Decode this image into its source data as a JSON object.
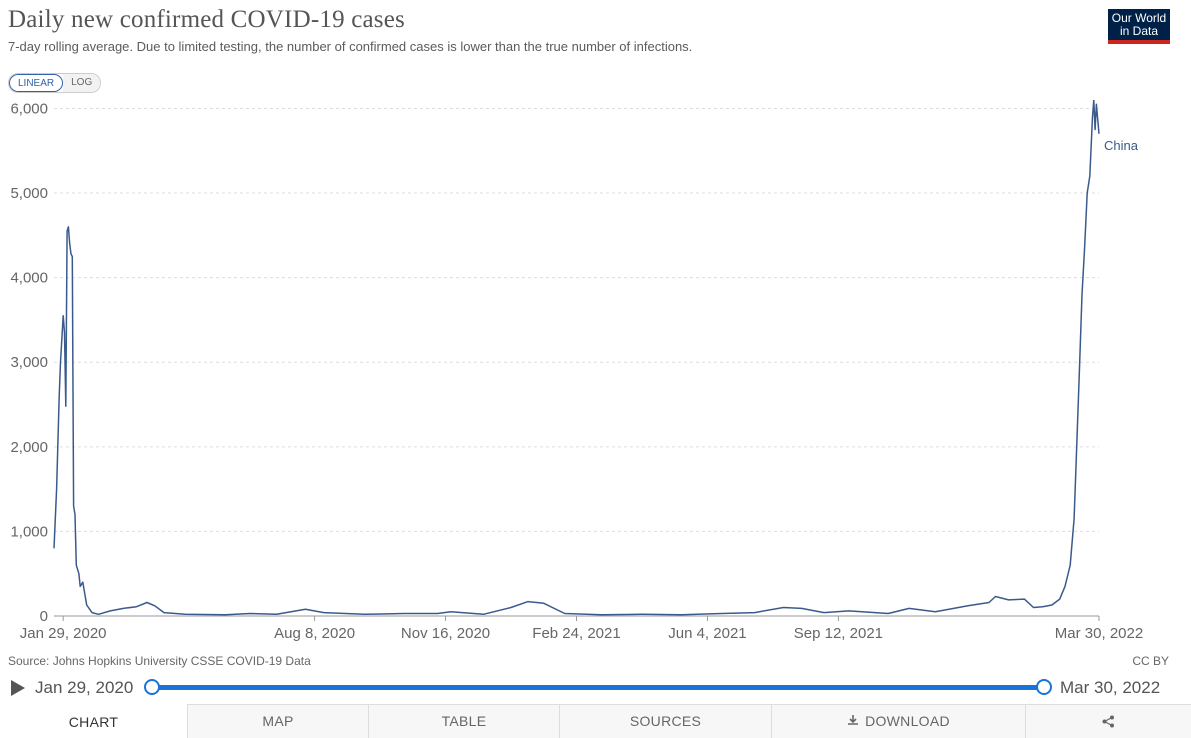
{
  "header": {
    "title": "Daily new confirmed COVID-19 cases",
    "subtitle": "7-day rolling average. Due to limited testing, the number of confirmed cases is lower than the true number of infections.",
    "logo_line1": "Our World",
    "logo_line2": "in Data"
  },
  "scale_toggle": {
    "linear": "LINEAR",
    "log": "LOG",
    "active": "LINEAR"
  },
  "chart_data": {
    "type": "line",
    "title": "Daily new confirmed COVID-19 cases",
    "ylim": [
      0,
      6100
    ],
    "yticks": [
      0,
      1000,
      2000,
      3000,
      4000,
      5000,
      6000
    ],
    "ytick_labels": [
      "0",
      "1,000",
      "2,000",
      "3,000",
      "4,000",
      "5,000",
      "6,000"
    ],
    "xlim": [
      "2020-01-22",
      "2022-03-30"
    ],
    "xticks": [
      "2020-01-29",
      "2020-08-08",
      "2020-11-16",
      "2021-02-24",
      "2021-06-04",
      "2021-09-12",
      "2022-03-30"
    ],
    "xtick_labels": [
      "Jan 29, 2020",
      "Aug 8, 2020",
      "Nov 16, 2020",
      "Feb 24, 2021",
      "Jun 4, 2021",
      "Sep 12, 2021",
      "Mar 30, 2022"
    ],
    "grid": true,
    "series": [
      {
        "name": "China",
        "color": "#3b5a8c",
        "points": [
          [
            "2020-01-22",
            800
          ],
          [
            "2020-01-24",
            1500
          ],
          [
            "2020-01-26",
            2600
          ],
          [
            "2020-01-27",
            3000
          ],
          [
            "2020-01-29",
            3550
          ],
          [
            "2020-01-30",
            3350
          ],
          [
            "2020-01-31",
            2480
          ],
          [
            "2020-02-01",
            4550
          ],
          [
            "2020-02-02",
            4600
          ],
          [
            "2020-02-03",
            4400
          ],
          [
            "2020-02-04",
            4280
          ],
          [
            "2020-02-05",
            4250
          ],
          [
            "2020-02-06",
            1300
          ],
          [
            "2020-02-07",
            1200
          ],
          [
            "2020-02-08",
            600
          ],
          [
            "2020-02-10",
            500
          ],
          [
            "2020-02-11",
            350
          ],
          [
            "2020-02-13",
            400
          ],
          [
            "2020-02-16",
            130
          ],
          [
            "2020-02-20",
            40
          ],
          [
            "2020-02-25",
            20
          ],
          [
            "2020-03-05",
            60
          ],
          [
            "2020-03-15",
            90
          ],
          [
            "2020-03-25",
            110
          ],
          [
            "2020-04-02",
            160
          ],
          [
            "2020-04-08",
            120
          ],
          [
            "2020-04-15",
            40
          ],
          [
            "2020-05-01",
            20
          ],
          [
            "2020-06-01",
            15
          ],
          [
            "2020-06-20",
            30
          ],
          [
            "2020-07-10",
            20
          ],
          [
            "2020-08-01",
            80
          ],
          [
            "2020-08-15",
            40
          ],
          [
            "2020-09-15",
            20
          ],
          [
            "2020-10-15",
            30
          ],
          [
            "2020-11-10",
            30
          ],
          [
            "2020-11-20",
            50
          ],
          [
            "2020-12-15",
            20
          ],
          [
            "2021-01-05",
            100
          ],
          [
            "2021-01-18",
            170
          ],
          [
            "2021-01-30",
            150
          ],
          [
            "2021-02-15",
            30
          ],
          [
            "2021-03-15",
            15
          ],
          [
            "2021-04-15",
            20
          ],
          [
            "2021-05-15",
            15
          ],
          [
            "2021-06-15",
            30
          ],
          [
            "2021-07-10",
            40
          ],
          [
            "2021-08-01",
            100
          ],
          [
            "2021-08-15",
            90
          ],
          [
            "2021-09-01",
            40
          ],
          [
            "2021-09-20",
            60
          ],
          [
            "2021-10-20",
            30
          ],
          [
            "2021-11-05",
            90
          ],
          [
            "2021-11-25",
            50
          ],
          [
            "2021-12-20",
            120
          ],
          [
            "2022-01-05",
            160
          ],
          [
            "2022-01-10",
            230
          ],
          [
            "2022-01-20",
            190
          ],
          [
            "2022-02-01",
            200
          ],
          [
            "2022-02-08",
            100
          ],
          [
            "2022-02-15",
            110
          ],
          [
            "2022-02-22",
            130
          ],
          [
            "2022-02-28",
            200
          ],
          [
            "2022-03-04",
            350
          ],
          [
            "2022-03-08",
            600
          ],
          [
            "2022-03-11",
            1150
          ],
          [
            "2022-03-13",
            2000
          ],
          [
            "2022-03-15",
            2900
          ],
          [
            "2022-03-17",
            3800
          ],
          [
            "2022-03-19",
            4350
          ],
          [
            "2022-03-21",
            5000
          ],
          [
            "2022-03-23",
            5200
          ],
          [
            "2022-03-25",
            5900
          ],
          [
            "2022-03-26",
            6100
          ],
          [
            "2022-03-27",
            5750
          ],
          [
            "2022-03-28",
            6050
          ],
          [
            "2022-03-30",
            5700
          ]
        ]
      }
    ]
  },
  "footer": {
    "source": "Source: Johns Hopkins University CSSE COVID-19 Data",
    "license": "CC BY"
  },
  "timeline": {
    "start_label": "Jan 29, 2020",
    "end_label": "Mar 30, 2022",
    "play_icon": "play-icon"
  },
  "tabs": [
    {
      "label": "CHART",
      "active": true
    },
    {
      "label": "MAP"
    },
    {
      "label": "TABLE"
    },
    {
      "label": "SOURCES"
    },
    {
      "label": "DOWNLOAD",
      "icon": "download-icon"
    },
    {
      "icon": "share-icon"
    }
  ]
}
